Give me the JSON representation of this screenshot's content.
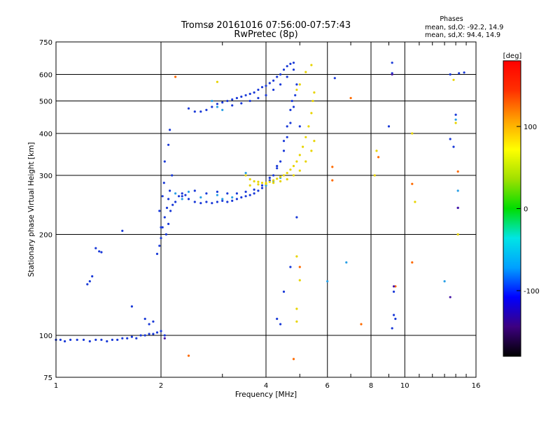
{
  "chart_data": {
    "type": "scatter",
    "title": "Tromsø 20161016 07:56:00-07:57:43",
    "subtitle": "RwPretec (8p)",
    "legend_box": {
      "heading": "Phases",
      "line1": "mean, sd,O: -92.2, 14.9",
      "line2": "mean, sd,X:  94.4, 14.9"
    },
    "xlabel": "Frequency [MHz]",
    "ylabel": "Stationary phase Virtual Height [km]",
    "x_scale": "log",
    "y_scale": "log",
    "xlim": [
      1,
      16
    ],
    "ylim": [
      75,
      750
    ],
    "x_ticks": [
      1,
      2,
      4,
      6,
      8,
      10,
      16
    ],
    "y_ticks": [
      75,
      100,
      200,
      300,
      400,
      500,
      600,
      750
    ],
    "x_minor_ticks": [
      3,
      5,
      7,
      9,
      11,
      12,
      13,
      14,
      15
    ],
    "grid": true,
    "colorbar": {
      "label": "[deg]",
      "range": [
        -180,
        180
      ],
      "ticks": [
        100,
        0,
        -100
      ],
      "colors": [
        "#000000",
        "#3d0080",
        "#0000ff",
        "#00a0ff",
        "#00e5e5",
        "#00dd00",
        "#a0e000",
        "#ffff00",
        "#ffa000",
        "#ff3000",
        "#ff0000"
      ]
    },
    "series": [
      {
        "color": "#1a3ad8",
        "points": [
          [
            1.0,
            97
          ],
          [
            1.03,
            97
          ],
          [
            1.06,
            96
          ],
          [
            1.1,
            97
          ],
          [
            1.15,
            97
          ],
          [
            1.2,
            97
          ],
          [
            1.25,
            96
          ],
          [
            1.3,
            97
          ],
          [
            1.35,
            97
          ],
          [
            1.4,
            96
          ],
          [
            1.45,
            97
          ],
          [
            1.5,
            97
          ],
          [
            1.55,
            98
          ],
          [
            1.6,
            98
          ],
          [
            1.65,
            99
          ],
          [
            1.7,
            98
          ],
          [
            1.75,
            100
          ],
          [
            1.8,
            100
          ],
          [
            1.85,
            101
          ],
          [
            1.9,
            101
          ],
          [
            1.95,
            102
          ],
          [
            2.0,
            103
          ],
          [
            1.25,
            145
          ],
          [
            1.27,
            150
          ],
          [
            1.23,
            142
          ],
          [
            1.3,
            182
          ],
          [
            1.33,
            178
          ],
          [
            1.35,
            177
          ],
          [
            1.55,
            205
          ],
          [
            1.65,
            122
          ],
          [
            1.8,
            112
          ],
          [
            1.85,
            108
          ],
          [
            1.9,
            110
          ],
          [
            2.05,
            100
          ],
          [
            1.95,
            175
          ],
          [
            1.98,
            185
          ],
          [
            2.0,
            195
          ],
          [
            2.02,
            210
          ],
          [
            2.05,
            225
          ],
          [
            2.08,
            240
          ],
          [
            2.1,
            255
          ],
          [
            2.12,
            270
          ],
          [
            2.15,
            300
          ],
          [
            2.05,
            330
          ],
          [
            2.1,
            370
          ],
          [
            2.12,
            410
          ],
          [
            2.0,
            210
          ],
          [
            2.02,
            260
          ],
          [
            1.98,
            235
          ],
          [
            2.04,
            285
          ],
          [
            2.07,
            200
          ],
          [
            2.1,
            215
          ],
          [
            2.13,
            235
          ],
          [
            2.16,
            245
          ],
          [
            2.2,
            250
          ],
          [
            2.25,
            260
          ],
          [
            2.3,
            265
          ],
          [
            2.35,
            262
          ],
          [
            2.4,
            255
          ],
          [
            2.5,
            250
          ],
          [
            2.6,
            248
          ],
          [
            2.7,
            250
          ],
          [
            2.8,
            248
          ],
          [
            2.9,
            250
          ],
          [
            3.0,
            252
          ],
          [
            3.1,
            250
          ],
          [
            3.2,
            252
          ],
          [
            3.3,
            255
          ],
          [
            3.4,
            258
          ],
          [
            3.5,
            260
          ],
          [
            3.6,
            262
          ],
          [
            3.7,
            265
          ],
          [
            3.8,
            270
          ],
          [
            3.9,
            275
          ],
          [
            4.0,
            280
          ],
          [
            4.1,
            290
          ],
          [
            4.2,
            300
          ],
          [
            4.3,
            315
          ],
          [
            4.4,
            330
          ],
          [
            4.5,
            355
          ],
          [
            4.6,
            390
          ],
          [
            4.7,
            430
          ],
          [
            4.8,
            480
          ],
          [
            4.85,
            520
          ],
          [
            4.9,
            560
          ],
          [
            2.3,
            260
          ],
          [
            2.5,
            270
          ],
          [
            2.7,
            265
          ],
          [
            2.9,
            268
          ],
          [
            3.1,
            265
          ],
          [
            3.3,
            265
          ],
          [
            3.5,
            268
          ],
          [
            3.7,
            272
          ],
          [
            3.9,
            280
          ],
          [
            4.1,
            295
          ],
          [
            4.3,
            320
          ],
          [
            4.5,
            380
          ],
          [
            4.6,
            420
          ],
          [
            4.7,
            470
          ],
          [
            4.75,
            500
          ],
          [
            2.4,
            475
          ],
          [
            2.5,
            465
          ],
          [
            2.6,
            465
          ],
          [
            2.7,
            470
          ],
          [
            2.8,
            480
          ],
          [
            2.9,
            490
          ],
          [
            3.0,
            495
          ],
          [
            3.1,
            500
          ],
          [
            3.2,
            505
          ],
          [
            3.3,
            510
          ],
          [
            3.4,
            515
          ],
          [
            3.5,
            520
          ],
          [
            3.6,
            525
          ],
          [
            3.7,
            530
          ],
          [
            3.8,
            540
          ],
          [
            3.9,
            550
          ],
          [
            4.0,
            555
          ],
          [
            4.1,
            565
          ],
          [
            4.2,
            575
          ],
          [
            4.3,
            590
          ],
          [
            4.4,
            600
          ],
          [
            4.5,
            620
          ],
          [
            4.6,
            635
          ],
          [
            4.7,
            645
          ],
          [
            4.8,
            650
          ],
          [
            3.2,
            485
          ],
          [
            3.4,
            492
          ],
          [
            3.6,
            500
          ],
          [
            3.8,
            510
          ],
          [
            4.0,
            520
          ],
          [
            4.2,
            540
          ],
          [
            4.4,
            560
          ],
          [
            4.6,
            590
          ],
          [
            4.8,
            620
          ],
          [
            4.3,
            112
          ],
          [
            4.4,
            108
          ],
          [
            4.5,
            135
          ],
          [
            4.7,
            160
          ],
          [
            4.9,
            225
          ],
          [
            5.0,
            420
          ],
          [
            6.3,
            585
          ],
          [
            9.0,
            420
          ],
          [
            9.2,
            650
          ],
          [
            9.2,
            605
          ],
          [
            9.3,
            135
          ],
          [
            9.3,
            115
          ],
          [
            9.4,
            112
          ],
          [
            9.2,
            105
          ],
          [
            13.5,
            385
          ],
          [
            13.8,
            365
          ],
          [
            14.0,
            455
          ],
          [
            14.2,
            240
          ],
          [
            14.3,
            605
          ],
          [
            14.8,
            608
          ],
          [
            13.5,
            600
          ]
        ]
      },
      {
        "color": "#2aa0e6",
        "points": [
          [
            2.3,
            255
          ],
          [
            2.6,
            258
          ],
          [
            2.9,
            262
          ],
          [
            3.0,
            255
          ],
          [
            3.2,
            258
          ],
          [
            2.8,
            500
          ],
          [
            2.9,
            480
          ],
          [
            3.0,
            470
          ],
          [
            3.5,
            305
          ],
          [
            4.0,
            280
          ],
          [
            4.2,
            288
          ],
          [
            4.4,
            295
          ],
          [
            6.0,
            145
          ],
          [
            6.8,
            165
          ],
          [
            13.0,
            145
          ],
          [
            14.0,
            440
          ],
          [
            14.2,
            270
          ],
          [
            2.2,
            265
          ],
          [
            2.4,
            268
          ]
        ]
      },
      {
        "color": "#e8d400",
        "points": [
          [
            3.5,
            300
          ],
          [
            3.6,
            292
          ],
          [
            3.7,
            288
          ],
          [
            3.8,
            287
          ],
          [
            3.9,
            285
          ],
          [
            4.0,
            285
          ],
          [
            4.1,
            287
          ],
          [
            4.2,
            290
          ],
          [
            4.3,
            293
          ],
          [
            4.4,
            297
          ],
          [
            4.5,
            300
          ],
          [
            4.6,
            305
          ],
          [
            4.7,
            312
          ],
          [
            4.8,
            320
          ],
          [
            4.9,
            330
          ],
          [
            5.0,
            345
          ],
          [
            5.1,
            365
          ],
          [
            5.2,
            390
          ],
          [
            5.3,
            420
          ],
          [
            5.4,
            460
          ],
          [
            5.45,
            500
          ],
          [
            5.5,
            530
          ],
          [
            3.6,
            280
          ],
          [
            3.8,
            282
          ],
          [
            4.0,
            283
          ],
          [
            4.2,
            285
          ],
          [
            4.4,
            288
          ],
          [
            4.6,
            292
          ],
          [
            4.8,
            300
          ],
          [
            5.0,
            310
          ],
          [
            5.2,
            330
          ],
          [
            5.4,
            355
          ],
          [
            5.5,
            380
          ],
          [
            4.9,
            540
          ],
          [
            5.0,
            560
          ],
          [
            5.2,
            610
          ],
          [
            5.4,
            640
          ],
          [
            2.9,
            570
          ],
          [
            4.9,
            120
          ],
          [
            4.9,
            110
          ],
          [
            4.9,
            172
          ],
          [
            5.0,
            146
          ],
          [
            10.5,
            400
          ],
          [
            10.7,
            250
          ],
          [
            13.8,
            578
          ],
          [
            14.0,
            430
          ],
          [
            14.2,
            200
          ],
          [
            8.3,
            355
          ],
          [
            8.2,
            300
          ]
        ]
      },
      {
        "color": "#ff6a00",
        "points": [
          [
            2.2,
            590
          ],
          [
            6.2,
            318
          ],
          [
            6.2,
            290
          ],
          [
            7.0,
            510
          ],
          [
            7.5,
            108
          ],
          [
            10.5,
            283
          ],
          [
            10.5,
            165
          ],
          [
            14.2,
            308
          ],
          [
            4.8,
            85
          ],
          [
            2.4,
            87
          ],
          [
            5.0,
            160
          ],
          [
            8.4,
            340
          ],
          [
            9.4,
            140
          ]
        ]
      },
      {
        "color": "#4a18a8",
        "points": [
          [
            9.2,
            600
          ],
          [
            9.3,
            140
          ],
          [
            14.2,
            240
          ],
          [
            13.5,
            130
          ],
          [
            2.05,
            98
          ]
        ]
      }
    ]
  }
}
